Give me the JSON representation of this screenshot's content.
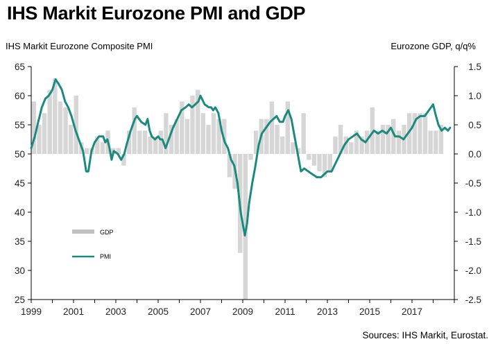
{
  "title": "IHS Markit Eurozone PMI and GDP",
  "chart_data": {
    "type": "bar+line",
    "title": "IHS Markit Eurozone PMI and GDP",
    "left_axis_label": "IHS Markit Eurozone Composite PMI",
    "right_axis_label": "Eurozone GDP, q/q%",
    "left_ylim": [
      25,
      65
    ],
    "right_ylim": [
      -2.5,
      1.5
    ],
    "left_ticks": [
      "65",
      "60",
      "55",
      "50",
      "45",
      "40",
      "35",
      "30",
      "25"
    ],
    "right_ticks": [
      "1.5",
      "1.0",
      "0.5",
      "0.0",
      "-0.5",
      "-1.0",
      "-1.5",
      "-2.0",
      "-2.5"
    ],
    "x_ticks": [
      "1999",
      "2001",
      "2003",
      "2005",
      "2007",
      "2009",
      "2011",
      "2013",
      "2015",
      "2017"
    ],
    "legend": [
      {
        "name": "GDP",
        "color": "#c0c0c0"
      },
      {
        "name": "PMI",
        "color": "#1a8a7f"
      }
    ],
    "source": "Sources: IHS Markit, Eurostat.",
    "series": [
      {
        "name": "GDP",
        "axis": "right",
        "color": "#d6d6d6",
        "start": 1999.0,
        "step": 0.25,
        "values": [
          0.9,
          0.5,
          0.7,
          1.1,
          1.3,
          0.9,
          0.8,
          0.5,
          1.0,
          0.2,
          0.1,
          0.1,
          0.3,
          0.2,
          0.4,
          0.1,
          0.1,
          -0.2,
          0.4,
          0.8,
          0.4,
          0.4,
          0.3,
          0.3,
          0.4,
          0.7,
          0.5,
          0.6,
          0.9,
          0.6,
          1.0,
          1.1,
          0.7,
          0.5,
          0.7,
          0.6,
          0.6,
          -0.4,
          -0.6,
          -1.7,
          -2.5,
          -0.1,
          0.4,
          0.6,
          0.6,
          0.9,
          0.5,
          0.3,
          0.9,
          0.2,
          0.1,
          0.7,
          -0.1,
          -0.2,
          -0.3,
          -0.4,
          -0.3,
          0.3,
          0.5,
          0.3,
          0.2,
          0.4,
          0.3,
          0.4,
          0.8,
          0.4,
          0.5,
          0.5,
          0.6,
          0.4,
          0.5,
          0.7,
          0.7,
          0.7,
          0.7,
          0.4,
          0.4,
          0.5
        ]
      },
      {
        "name": "PMI",
        "axis": "left",
        "color": "#1a8a7f",
        "x": [
          1999.0,
          1999.17,
          1999.33,
          1999.5,
          1999.67,
          1999.83,
          2000.0,
          2000.15,
          2000.3,
          2000.45,
          2000.6,
          2000.75,
          2000.9,
          2001.1,
          2001.3,
          2001.45,
          2001.6,
          2001.7,
          2001.85,
          2002.0,
          2002.2,
          2002.4,
          2002.5,
          2002.6,
          2002.7,
          2002.8,
          2002.9,
          2003.1,
          2003.25,
          2003.4,
          2003.5,
          2003.7,
          2003.9,
          2004.0,
          2004.2,
          2004.4,
          2004.5,
          2004.6,
          2004.7,
          2004.85,
          2005.0,
          2005.1,
          2005.2,
          2005.35,
          2005.5,
          2005.7,
          2005.9,
          2006.1,
          2006.3,
          2006.45,
          2006.6,
          2006.75,
          2006.9,
          2007.0,
          2007.2,
          2007.4,
          2007.5,
          2007.6,
          2007.7,
          2007.85,
          2008.0,
          2008.15,
          2008.3,
          2008.45,
          2008.6,
          2008.75,
          2008.9,
          2009.0,
          2009.1,
          2009.2,
          2009.3,
          2009.45,
          2009.6,
          2009.75,
          2009.9,
          2010.1,
          2010.3,
          2010.45,
          2010.6,
          2010.75,
          2010.9,
          2011.0,
          2011.15,
          2011.3,
          2011.45,
          2011.6,
          2011.75,
          2011.9,
          2012.1,
          2012.3,
          2012.5,
          2012.7,
          2012.85,
          2013.0,
          2013.2,
          2013.4,
          2013.6,
          2013.8,
          2014.0,
          2014.2,
          2014.4,
          2014.6,
          2014.8,
          2015.0,
          2015.2,
          2015.4,
          2015.6,
          2015.8,
          2016.0,
          2016.2,
          2016.4,
          2016.6,
          2016.8,
          2017.0,
          2017.2,
          2017.4,
          2017.6,
          2017.8,
          2018.0,
          2018.1,
          2018.25,
          2018.4,
          2018.55,
          2018.7,
          2018.8
        ],
        "values": [
          51.0,
          53.0,
          55.5,
          58.0,
          59.5,
          60.0,
          61.0,
          62.8,
          62.0,
          61.0,
          59.0,
          58.0,
          56.5,
          54.0,
          52.0,
          50.5,
          47.0,
          47.0,
          50.5,
          52.0,
          53.0,
          53.0,
          52.0,
          52.5,
          51.0,
          49.0,
          50.5,
          50.0,
          49.0,
          50.0,
          51.5,
          54.0,
          56.0,
          56.5,
          55.5,
          55.0,
          56.0,
          54.0,
          53.0,
          52.5,
          53.0,
          52.5,
          52.5,
          51.0,
          52.5,
          54.5,
          56.0,
          57.5,
          58.0,
          58.5,
          58.0,
          58.5,
          59.0,
          60.0,
          58.5,
          58.0,
          58.0,
          57.5,
          58.0,
          57.0,
          54.0,
          52.0,
          51.0,
          49.0,
          48.0,
          45.0,
          40.0,
          38.0,
          36.0,
          38.0,
          41.5,
          45.0,
          48.0,
          51.5,
          53.5,
          54.5,
          55.5,
          56.0,
          56.5,
          55.5,
          55.5,
          56.5,
          57.5,
          56.0,
          53.0,
          50.0,
          47.0,
          47.5,
          47.0,
          46.5,
          46.0,
          46.0,
          46.5,
          47.0,
          47.0,
          48.5,
          50.0,
          51.5,
          52.5,
          53.0,
          53.5,
          52.5,
          52.0,
          53.0,
          54.0,
          53.5,
          54.0,
          53.5,
          54.5,
          53.0,
          53.0,
          52.5,
          53.5,
          54.5,
          56.0,
          56.5,
          56.5,
          57.5,
          58.5,
          57.0,
          55.0,
          54.0,
          54.5,
          54.0,
          54.5
        ]
      }
    ]
  }
}
